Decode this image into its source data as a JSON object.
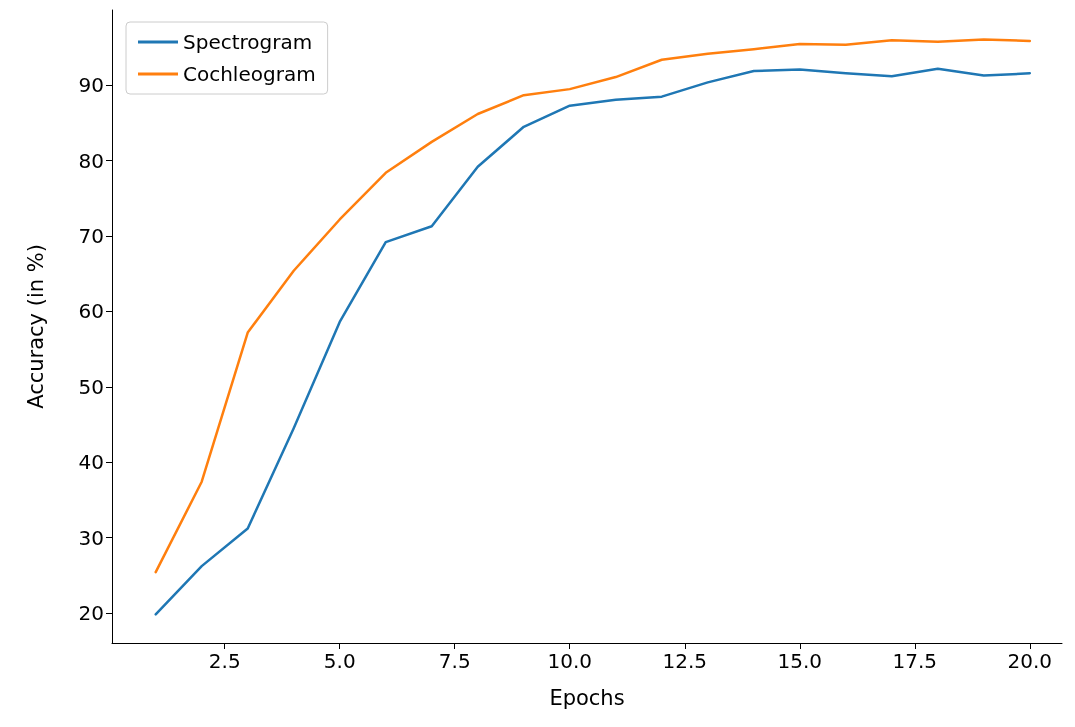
{
  "chart_data": {
    "type": "line",
    "xlabel": "Epochs",
    "ylabel": "Accuracy (in %)",
    "x": [
      1,
      2,
      3,
      4,
      5,
      6,
      7,
      8,
      9,
      10,
      11,
      12,
      13,
      14,
      15,
      16,
      17,
      18,
      19,
      20
    ],
    "series": [
      {
        "name": "Spectrogram",
        "color": "#1f77b4",
        "values": [
          19.8,
          26.2,
          31.2,
          44.5,
          58.6,
          69.2,
          71.3,
          79.2,
          84.5,
          87.3,
          88.1,
          88.5,
          90.4,
          91.9,
          92.1,
          91.6,
          91.2,
          92.2,
          91.3,
          91.6
        ]
      },
      {
        "name": "Cochleogram",
        "color": "#ff7f0e",
        "values": [
          25.4,
          37.4,
          57.2,
          65.4,
          72.2,
          78.4,
          82.5,
          86.2,
          88.7,
          89.5,
          91.1,
          93.4,
          94.2,
          94.8,
          95.5,
          95.4,
          96.0,
          95.8,
          96.1,
          95.9
        ]
      }
    ],
    "xlim": [
      0.05,
      20.7
    ],
    "xticks": [
      {
        "value": 2.5,
        "label": "2.5"
      },
      {
        "value": 5,
        "label": "5.0"
      },
      {
        "value": 7.5,
        "label": "7.5"
      },
      {
        "value": 10,
        "label": "10.0"
      },
      {
        "value": 12.5,
        "label": "12.5"
      },
      {
        "value": 15,
        "label": "15.0"
      },
      {
        "value": 17.5,
        "label": "17.5"
      },
      {
        "value": 20,
        "label": "20.0"
      }
    ],
    "ylim": [
      16,
      100
    ],
    "yticks": [
      20,
      30,
      40,
      50,
      60,
      70,
      80,
      90
    ],
    "grid": false,
    "legend": "top left",
    "marker": "none",
    "line_style": "solid"
  }
}
